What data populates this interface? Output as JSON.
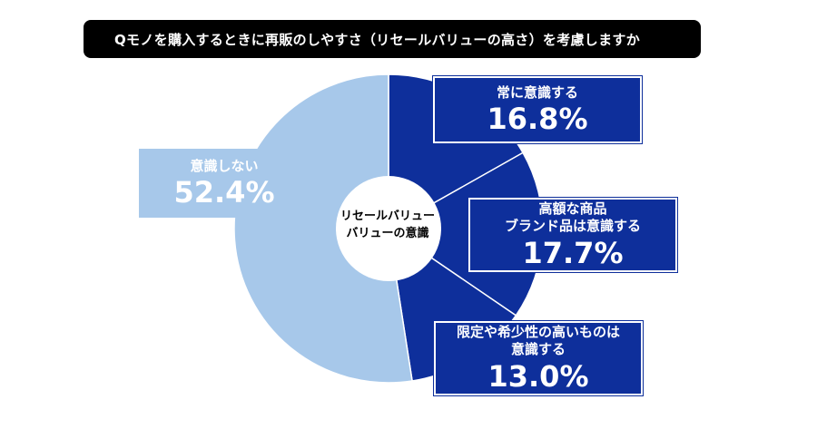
{
  "title": "Qモノを購入するときに再販のしやすさ（リセールバリューの高さ）を考慮しますか",
  "center_label": [
    "リセールバリュー",
    "バリューの意識"
  ],
  "colors": {
    "dark": "#0e2f9b",
    "light": "#a7c8ea",
    "title_bg": "#000000"
  },
  "chart_data": {
    "type": "pie",
    "title": "Qモノを購入するときに再販のしやすさ（リセールバリューの高さ）を考慮しますか",
    "center_label": "リセールバリュー バリューの意識",
    "slices": [
      {
        "label": "常に意識する",
        "value": 16.8,
        "value_label": "16.8%",
        "color": "#0e2f9b"
      },
      {
        "label": "高額な商品 ブランド品は意識する",
        "value": 17.7,
        "value_label": "17.7%",
        "color": "#0e2f9b"
      },
      {
        "label": "限定や希少性の高いものは 意識する",
        "value": 13.0,
        "value_label": "13.0%",
        "color": "#0e2f9b"
      },
      {
        "label": "意識しない",
        "value": 52.4,
        "value_label": "52.4%",
        "color": "#a7c8ea"
      }
    ]
  },
  "boxes": [
    {
      "lines": [
        "常に意識する"
      ],
      "pct": "16.8%"
    },
    {
      "lines": [
        "高額な商品",
        "ブランド品は意識する"
      ],
      "pct": "17.7%"
    },
    {
      "lines": [
        "限定や希少性の高いものは",
        "意識する"
      ],
      "pct": "13.0%"
    },
    {
      "lines": [
        "意識しない"
      ],
      "pct": "52.4%"
    }
  ]
}
